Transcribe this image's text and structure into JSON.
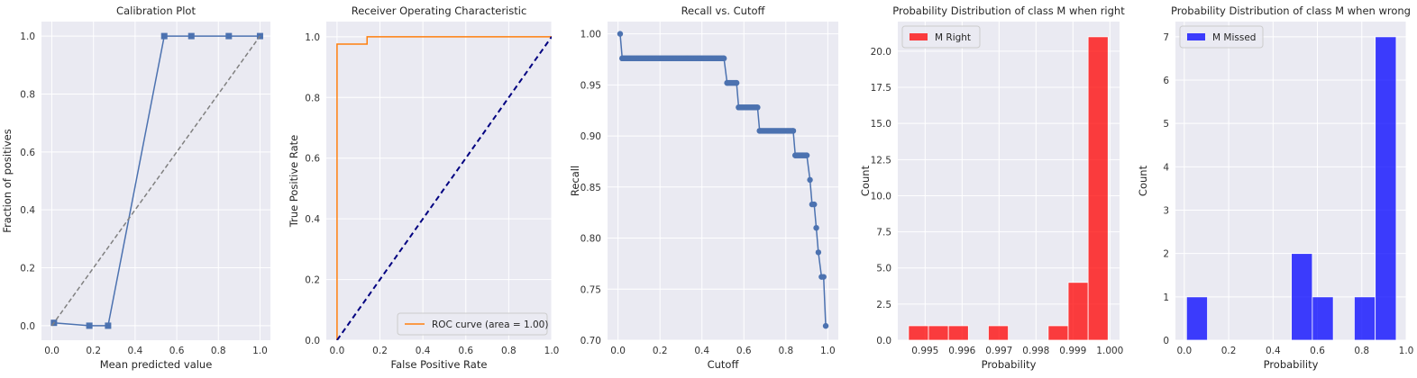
{
  "chart_data": [
    {
      "type": "line",
      "title": "Calibration Plot",
      "xlabel": "Mean predicted value",
      "ylabel": "Fraction of positives",
      "xlim": [
        -0.05,
        1.05
      ],
      "ylim": [
        -0.05,
        1.05
      ],
      "xticks": [
        0.0,
        0.2,
        0.4,
        0.6,
        0.8,
        1.0
      ],
      "yticks": [
        0.0,
        0.2,
        0.4,
        0.6,
        0.8,
        1.0
      ],
      "tick_labels_x": [
        "0.0",
        "0.2",
        "0.4",
        "0.6",
        "0.8",
        "1.0"
      ],
      "tick_labels_y": [
        "0.0",
        "0.2",
        "0.4",
        "0.6",
        "0.8",
        "1.0"
      ],
      "grid": true,
      "series": [
        {
          "x": [
            0.01,
            0.18,
            0.27,
            0.54,
            0.67,
            0.85,
            1.0
          ],
          "y": [
            0.01,
            0.0,
            0.0,
            1.0,
            1.0,
            1.0,
            1.0
          ],
          "color": "#4c72b0",
          "marker": "square"
        },
        {
          "x": [
            0.0,
            1.0
          ],
          "y": [
            0.0,
            1.0
          ],
          "color": "#808080",
          "style": "dashed"
        }
      ]
    },
    {
      "type": "line",
      "title": "Receiver Operating Characteristic",
      "xlabel": "False Positive Rate",
      "ylabel": "True Positive Rate",
      "xlim": [
        -0.05,
        1.0
      ],
      "ylim": [
        0.0,
        1.05
      ],
      "xticks": [
        0.0,
        0.2,
        0.4,
        0.6,
        0.8,
        1.0
      ],
      "yticks": [
        0.0,
        0.2,
        0.4,
        0.6,
        0.8,
        1.0
      ],
      "tick_labels_x": [
        "0.0",
        "0.2",
        "0.4",
        "0.6",
        "0.8",
        "1.0"
      ],
      "tick_labels_y": [
        "0.0",
        "0.2",
        "0.4",
        "0.6",
        "0.8",
        "1.0"
      ],
      "grid": true,
      "legend_position": "lower-right",
      "series": [
        {
          "name": "ROC curve (area = 1.00)",
          "x": [
            0.0,
            0.0,
            0.14,
            0.14,
            1.0
          ],
          "y": [
            0.0,
            0.976,
            0.976,
            1.0,
            1.0
          ],
          "color": "#ff7f0e"
        },
        {
          "x": [
            0.0,
            1.0
          ],
          "y": [
            0.0,
            1.0
          ],
          "color": "#000080",
          "style": "dashed"
        }
      ]
    },
    {
      "type": "line",
      "title": "Recall vs. Cutoff",
      "xlabel": "Cutoff",
      "ylabel": "Recall",
      "xlim": [
        -0.05,
        1.05
      ],
      "ylim": [
        0.7,
        1.012
      ],
      "xticks": [
        0.0,
        0.2,
        0.4,
        0.6,
        0.8,
        1.0
      ],
      "yticks": [
        0.7,
        0.75,
        0.8,
        0.85,
        0.9,
        0.95,
        1.0
      ],
      "tick_labels_x": [
        "0.0",
        "0.2",
        "0.4",
        "0.6",
        "0.8",
        "1.0"
      ],
      "tick_labels_y": [
        "0.70",
        "0.75",
        "0.80",
        "0.85",
        "0.90",
        "0.95",
        "1.00"
      ],
      "grid": true,
      "marker": "circle",
      "step_series": [
        {
          "from": 0.02,
          "to": 0.505,
          "y": 0.976
        },
        {
          "from": 0.52,
          "to": 0.565,
          "y": 0.952
        },
        {
          "from": 0.575,
          "to": 0.665,
          "y": 0.928
        },
        {
          "from": 0.675,
          "to": 0.835,
          "y": 0.905
        },
        {
          "from": 0.845,
          "to": 0.9,
          "y": 0.881
        }
      ],
      "series": [
        {
          "x": [
            0.01,
            0.02,
            0.505,
            0.52,
            0.565,
            0.575,
            0.665,
            0.675,
            0.835,
            0.845,
            0.9,
            0.915,
            0.925,
            0.935,
            0.945,
            0.955,
            0.97,
            0.98,
            0.99
          ],
          "y": [
            1.0,
            0.976,
            0.976,
            0.952,
            0.952,
            0.928,
            0.928,
            0.905,
            0.905,
            0.881,
            0.881,
            0.857,
            0.833,
            0.833,
            0.81,
            0.786,
            0.762,
            0.762,
            0.714
          ],
          "color": "#4c72b0"
        }
      ]
    },
    {
      "type": "bar",
      "title": "Probability Distribution of class M when right",
      "xlabel": "Probability",
      "ylabel": "Count",
      "xlim": [
        0.99426,
        1.00026
      ],
      "ylim": [
        0,
        22.05
      ],
      "xticks": [
        0.995,
        0.996,
        0.997,
        0.998,
        0.999,
        1.0
      ],
      "yticks": [
        0,
        2.5,
        5,
        7.5,
        10,
        12.5,
        15,
        17.5,
        20
      ],
      "tick_labels_x": [
        "0.995",
        "0.996",
        "0.997",
        "0.998",
        "0.999",
        "1.000"
      ],
      "tick_labels_y": [
        "0.0",
        "2.5",
        "5.0",
        "7.5",
        "10.0",
        "12.5",
        "15.0",
        "17.5",
        "20.0"
      ],
      "grid": true,
      "legend_position": "top-left",
      "series": [
        {
          "name": "M Right",
          "color": "#ff0000",
          "bin_edges": [
            0.99455,
            0.99509,
            0.99563,
            0.99617,
            0.99671,
            0.99725,
            0.99779,
            0.99833,
            0.99887,
            0.99941,
            0.99995
          ],
          "values": [
            1,
            1,
            1,
            0,
            1,
            0,
            0,
            1,
            4,
            21
          ]
        }
      ]
    },
    {
      "type": "bar",
      "title": "Probability Distribution of class M when wrong",
      "xlabel": "Probability",
      "ylabel": "Count",
      "xlim": [
        -0.04,
        1.0
      ],
      "ylim": [
        0,
        7.35
      ],
      "xticks": [
        0.0,
        0.2,
        0.4,
        0.6,
        0.8,
        1.0
      ],
      "yticks": [
        0,
        1,
        2,
        3,
        4,
        5,
        6,
        7
      ],
      "tick_labels_x": [
        "0.0",
        "0.2",
        "0.4",
        "0.6",
        "0.8",
        "1.0"
      ],
      "tick_labels_y": [
        "0",
        "1",
        "2",
        "3",
        "4",
        "5",
        "6",
        "7"
      ],
      "grid": true,
      "legend_position": "top-left",
      "series": [
        {
          "name": "M Missed",
          "color": "#0000ff",
          "bin_edges": [
            0.01,
            0.1045,
            0.199,
            0.2935,
            0.388,
            0.4825,
            0.577,
            0.6715,
            0.766,
            0.8605,
            0.955
          ],
          "values": [
            1,
            0,
            0,
            0,
            0,
            2,
            1,
            0,
            1,
            7
          ]
        }
      ]
    }
  ]
}
